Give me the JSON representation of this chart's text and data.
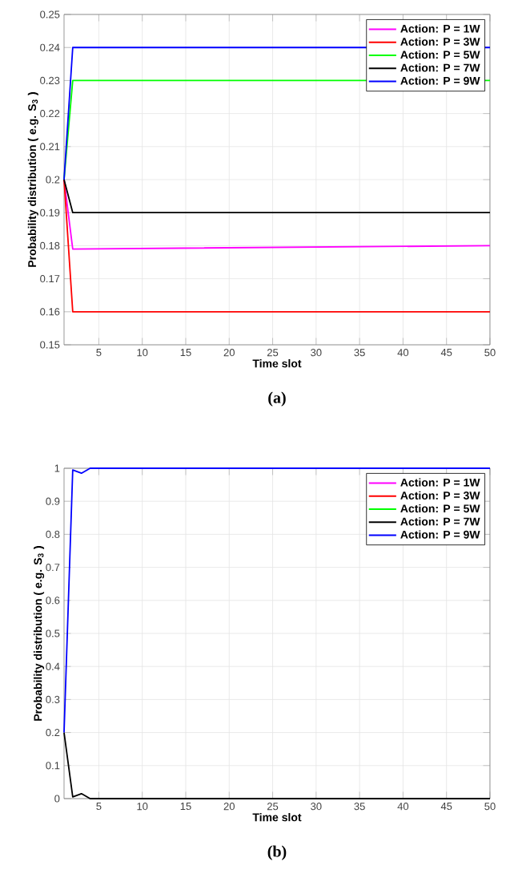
{
  "chart_data": [
    {
      "type": "line",
      "xlabel": "Time slot",
      "ylabel": "Probability distribution ( e.g. S$_{3}$ )",
      "annotations": [
        "(a)"
      ],
      "xlim": [
        1,
        50
      ],
      "xticks": [
        5,
        10,
        15,
        20,
        25,
        30,
        35,
        40,
        45,
        50
      ],
      "ylim": [
        0.15,
        0.25
      ],
      "yticks": [
        0.15,
        0.16,
        0.17,
        0.18,
        0.19,
        0.2,
        0.21,
        0.22,
        0.23,
        0.24,
        0.25
      ],
      "grid": true,
      "legend": "top right",
      "marker": "none",
      "line_style": "solid",
      "series": [
        {
          "name": "Action: P = 1W",
          "color": "#ff00ff",
          "x": [
            1,
            2,
            50
          ],
          "values": [
            0.2,
            0.179,
            0.18
          ]
        },
        {
          "name": "Action: P = 3W",
          "color": "#ff0000",
          "x": [
            1,
            2,
            50
          ],
          "values": [
            0.2,
            0.16,
            0.16
          ]
        },
        {
          "name": "Action: P = 5W",
          "color": "#00ff00",
          "x": [
            1,
            2,
            50
          ],
          "values": [
            0.2,
            0.23,
            0.23
          ]
        },
        {
          "name": "Action: P = 7W",
          "color": "#000000",
          "x": [
            1,
            2,
            50
          ],
          "values": [
            0.2,
            0.19,
            0.19
          ]
        },
        {
          "name": "Action: P = 9W",
          "color": "#0000ff",
          "x": [
            1,
            2,
            50
          ],
          "values": [
            0.2,
            0.24,
            0.24
          ]
        }
      ]
    },
    {
      "type": "line",
      "xlabel": "Time slot",
      "ylabel": "Probability distribution ( e.g. S$_{3}$ )",
      "annotations": [
        "(b)"
      ],
      "xlim": [
        1,
        50
      ],
      "xticks": [
        5,
        10,
        15,
        20,
        25,
        30,
        35,
        40,
        45,
        50
      ],
      "ylim": [
        0,
        1
      ],
      "yticks": [
        0,
        0.1,
        0.2,
        0.3,
        0.4,
        0.5,
        0.6,
        0.7,
        0.8,
        0.9,
        1
      ],
      "grid": true,
      "legend": "top right",
      "marker": "none",
      "line_style": "solid",
      "series": [
        {
          "name": "Action: P = 1W",
          "color": "#ff00ff"
        },
        {
          "name": "Action: P = 3W",
          "color": "#ff0000"
        },
        {
          "name": "Action: P = 5W",
          "color": "#00ff00"
        },
        {
          "name": "Action: P = 7W",
          "color": "#000000",
          "x": [
            1,
            2,
            3,
            4,
            50
          ],
          "values": [
            0.2,
            0.005,
            0.015,
            0,
            0
          ]
        },
        {
          "name": "Action: P = 9W",
          "color": "#0000ff",
          "x": [
            1,
            2,
            3,
            4,
            50
          ],
          "values": [
            0.2,
            0.995,
            0.985,
            1,
            1
          ]
        }
      ]
    }
  ]
}
